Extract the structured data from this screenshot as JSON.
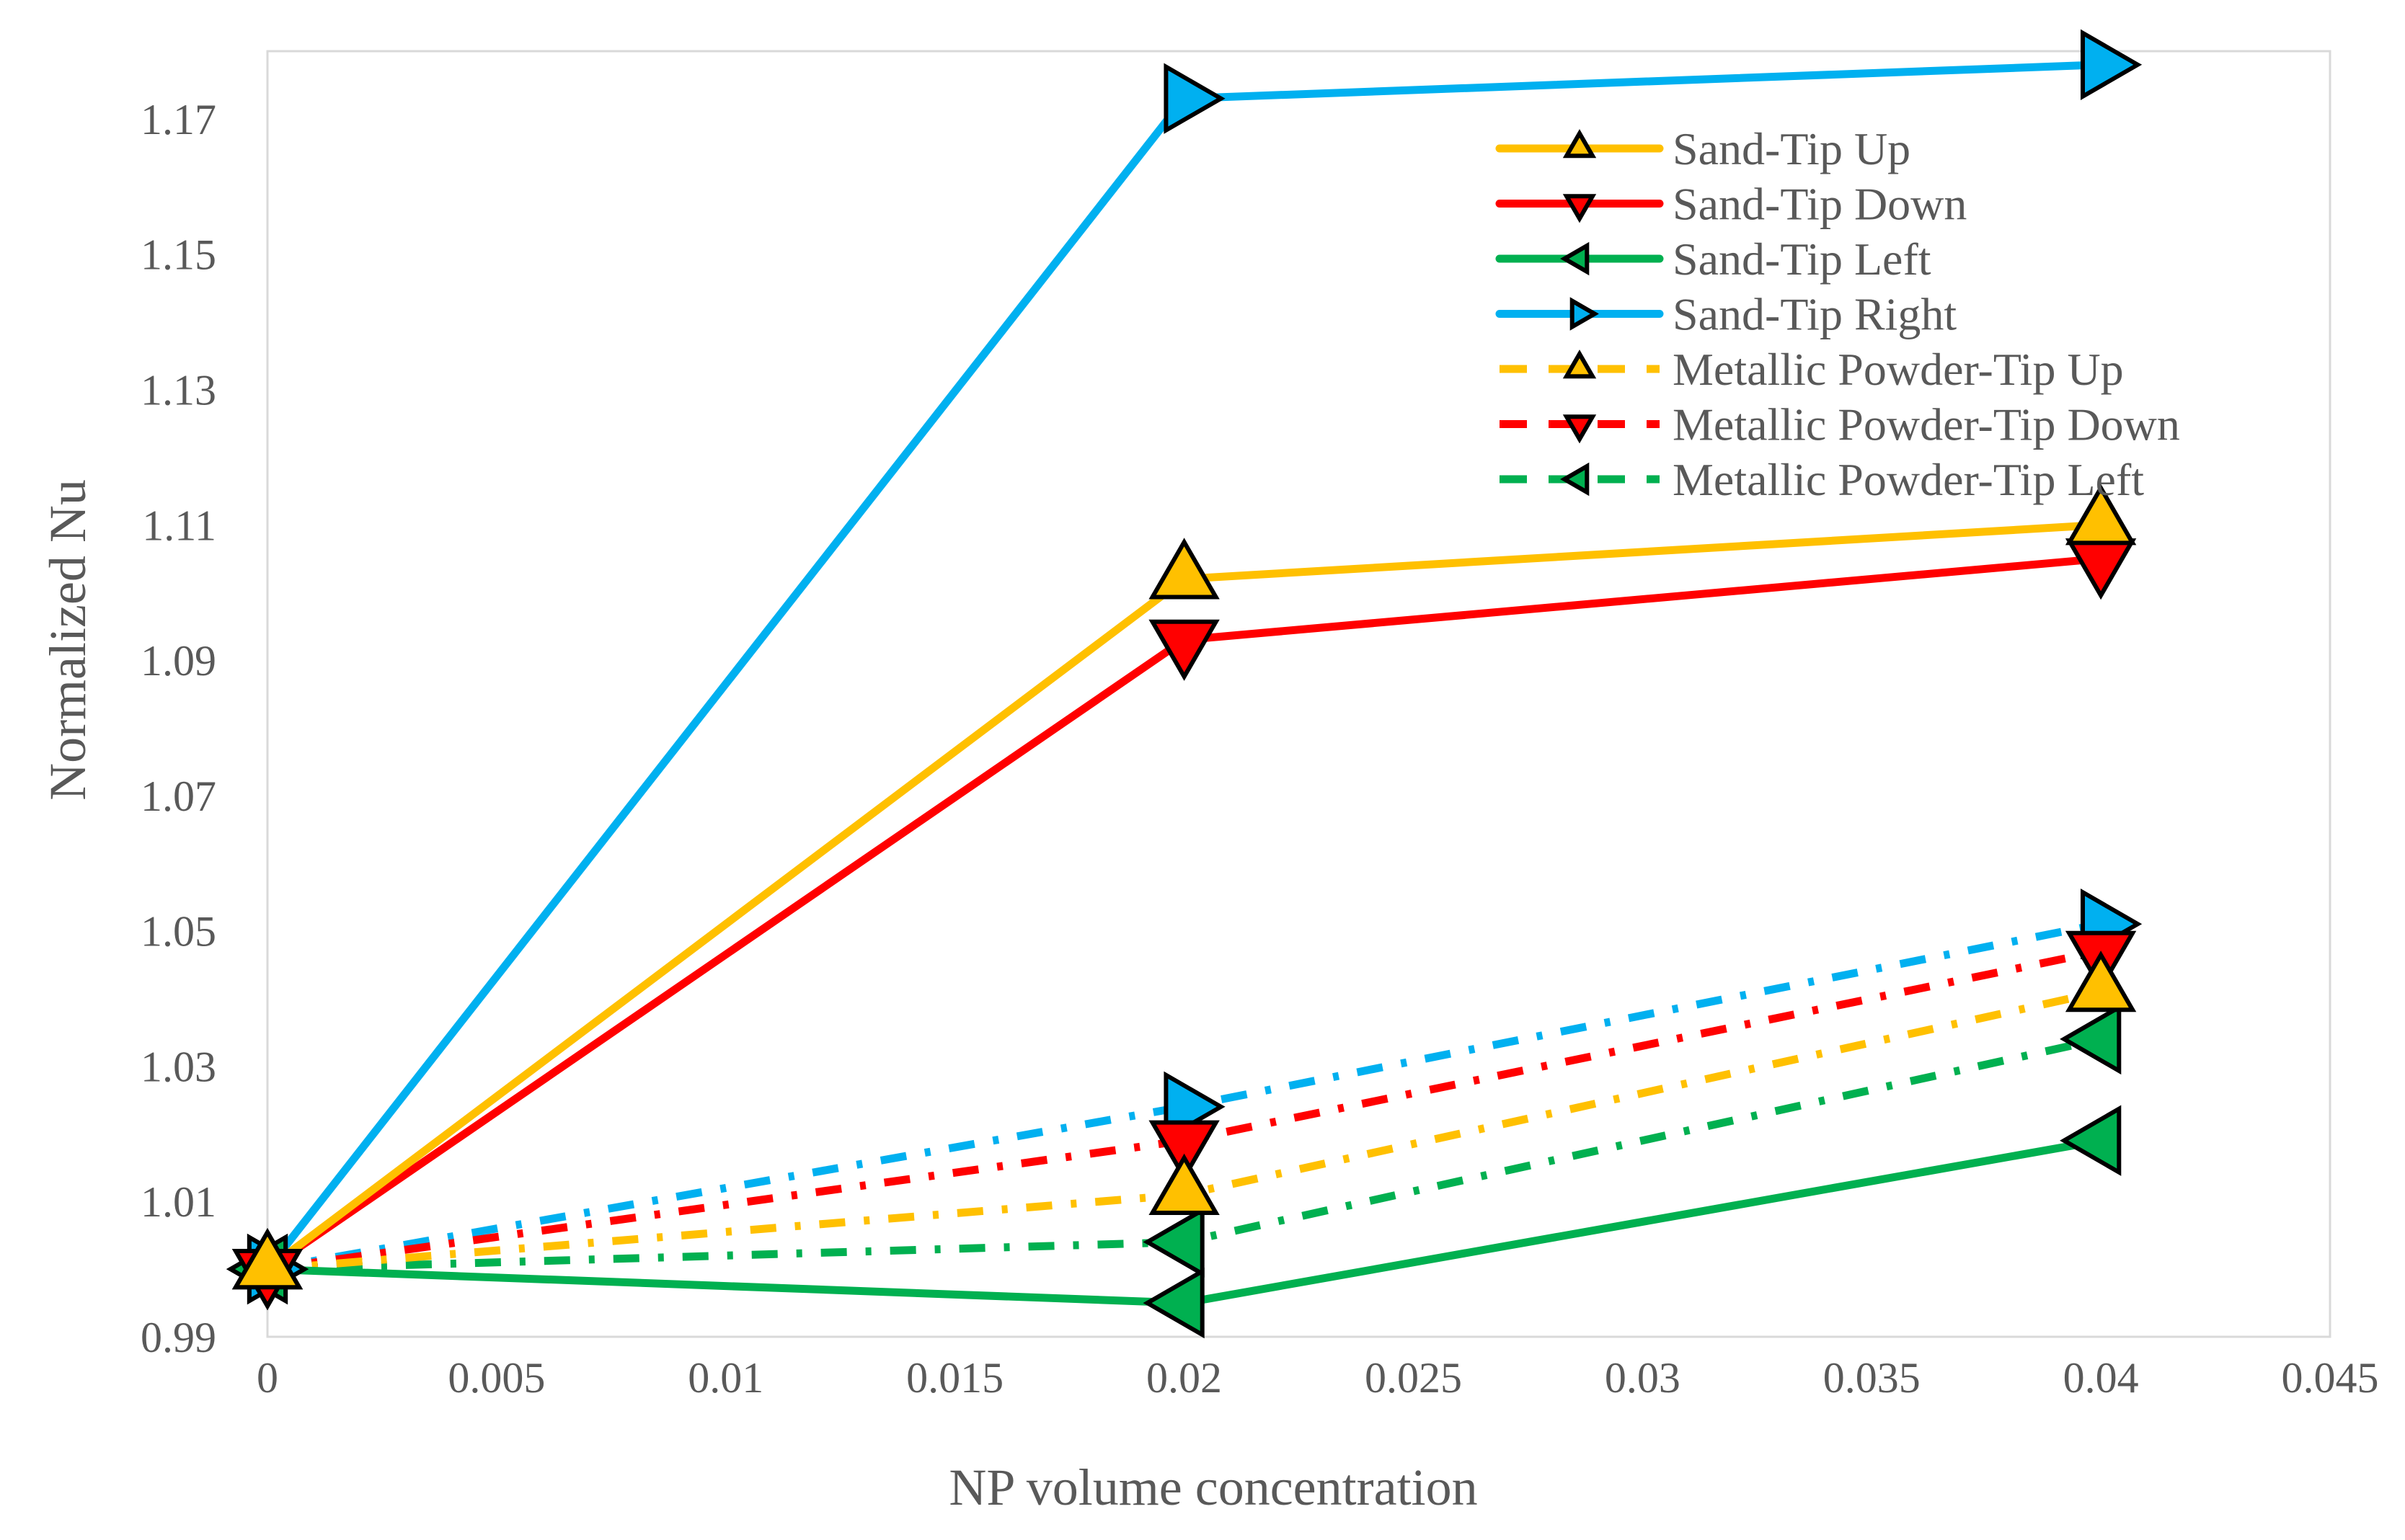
{
  "chart_data": {
    "type": "line",
    "title": "",
    "xlabel": "NP volume concentration",
    "ylabel": "Normalized Nu",
    "xlim": [
      0,
      0.045
    ],
    "ylim": [
      0.99,
      1.18
    ],
    "x_ticks": [
      "0",
      "0.005",
      "0.01",
      "0.015",
      "0.02",
      "0.025",
      "0.03",
      "0.035",
      "0.04",
      "0.045"
    ],
    "y_ticks": [
      "0.99",
      "1.01",
      "1.03",
      "1.05",
      "1.07",
      "1.09",
      "1.11",
      "1.13",
      "1.15",
      "1.17"
    ],
    "x_tick_values": [
      0,
      0.005,
      0.01,
      0.015,
      0.02,
      0.025,
      0.03,
      0.035,
      0.04,
      0.045
    ],
    "y_tick_values": [
      0.99,
      1.01,
      1.03,
      1.05,
      1.07,
      1.09,
      1.11,
      1.13,
      1.15,
      1.17
    ],
    "grid": false,
    "legend_position": "top-right",
    "x": [
      0,
      0.02,
      0.04
    ],
    "series": [
      {
        "name": "Sand-Tip Up",
        "values": [
          1.0,
          1.102,
          1.11
        ],
        "color": "#FFC000",
        "style": "solid",
        "marker": "triangle-up",
        "in_legend": true
      },
      {
        "name": "Sand-Tip Down",
        "values": [
          1.0,
          1.093,
          1.105
        ],
        "color": "#FF0000",
        "style": "solid",
        "marker": "triangle-down",
        "in_legend": true
      },
      {
        "name": "Sand-Tip Left",
        "values": [
          1.0,
          0.995,
          1.019
        ],
        "color": "#00B050",
        "style": "solid",
        "marker": "triangle-left",
        "in_legend": true
      },
      {
        "name": "Sand-Tip Right",
        "values": [
          1.0,
          1.173,
          1.178
        ],
        "color": "#00B0F0",
        "style": "solid",
        "marker": "triangle-right",
        "in_legend": true
      },
      {
        "name": "Metallic Powder-Tip Up",
        "values": [
          1.0,
          1.011,
          1.041
        ],
        "color": "#FFC000",
        "style": "dashdot",
        "marker": "triangle-up",
        "in_legend": true
      },
      {
        "name": "Metallic Powder-Tip Down",
        "values": [
          1.0,
          1.019,
          1.047
        ],
        "color": "#FF0000",
        "style": "dashdot",
        "marker": "triangle-down",
        "in_legend": true
      },
      {
        "name": "Metallic Powder-Tip Left",
        "values": [
          1.0,
          1.004,
          1.034
        ],
        "color": "#00B050",
        "style": "dashdot",
        "marker": "triangle-left",
        "in_legend": true
      },
      {
        "name": "",
        "values": [
          1.0,
          1.024,
          1.051
        ],
        "color": "#00B0F0",
        "style": "dashdot",
        "marker": "triangle-right",
        "in_legend": false
      }
    ]
  }
}
